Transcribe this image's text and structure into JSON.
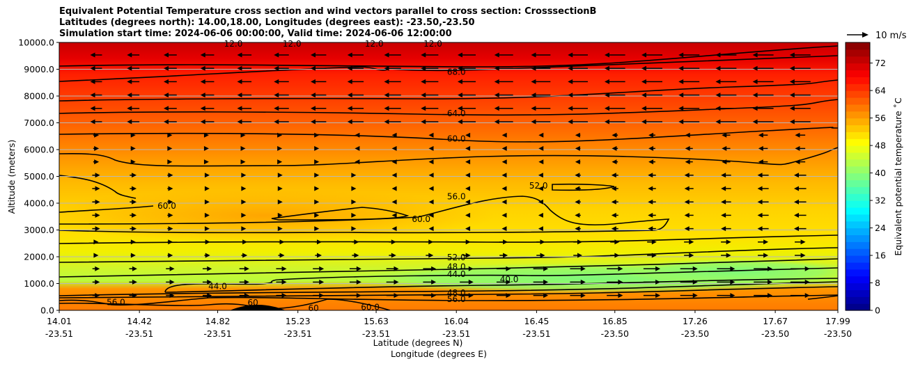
{
  "header": {
    "title_line1": "Equivalent Potential Temperature cross section and wind vectors parallel to cross section: CrosssectionB",
    "title_line2": "Latitudes (degrees north): 14.00,18.00, Longitudes (degrees east): -23.50,-23.50",
    "title_line3": "Simulation start time: 2024-06-06 00:00:00, Valid time: 2024-06-06 12:00:00"
  },
  "quiver_key": {
    "label": "10 m/s"
  },
  "chart_data": {
    "type": "heatmap",
    "subtype": "filled contour cross section with wind vectors",
    "ylabel": "Altitude (meters)",
    "xlabel_line1": "Latitude (degrees N)",
    "xlabel_line2": "Longitude (degrees E)",
    "ylim": [
      0,
      10000
    ],
    "yticks": [
      0,
      1000,
      2000,
      3000,
      4000,
      5000,
      6000,
      7000,
      8000,
      9000,
      10000
    ],
    "ytick_labels": [
      "0.0",
      "1000.0",
      "2000.0",
      "3000.0",
      "4000.0",
      "5000.0",
      "6000.0",
      "7000.0",
      "8000.0",
      "9000.0",
      "10000.0"
    ],
    "xlim": [
      14.01,
      17.99
    ],
    "xticks": [
      14.01,
      14.42,
      14.82,
      15.23,
      15.63,
      16.04,
      16.45,
      16.85,
      17.26,
      17.67,
      17.99
    ],
    "xtick_labels_lat": [
      "14.01",
      "14.42",
      "14.82",
      "15.23",
      "15.63",
      "16.04",
      "16.45",
      "16.85",
      "17.26",
      "17.67",
      "17.99"
    ],
    "xtick_labels_lon": [
      "-23.51",
      "-23.51",
      "-23.51",
      "-23.51",
      "-23.51",
      "-23.51",
      "-23.51",
      "-23.50",
      "-23.50",
      "-23.50",
      "-23.50"
    ],
    "colorbar": {
      "label": "Equivalent potential temperature $^\\circ$C",
      "label_display": "Equivalent potential temperature ˚C",
      "range": [
        0,
        78
      ],
      "ticks": [
        0,
        8,
        16,
        24,
        32,
        40,
        48,
        56,
        64,
        72
      ],
      "tick_labels": [
        "0",
        "8",
        "16",
        "24",
        "32",
        "40",
        "48",
        "56",
        "64",
        "72"
      ],
      "colormap": "jet"
    },
    "contour_labels": [
      {
        "text": "68.0",
        "lat": 16.04,
        "alt": 8900
      },
      {
        "text": "64.0",
        "lat": 16.04,
        "alt": 7350
      },
      {
        "text": "60.0",
        "lat": 16.04,
        "alt": 6400
      },
      {
        "text": "56.0",
        "lat": 16.04,
        "alt": 4250
      },
      {
        "text": "52.0",
        "lat": 16.04,
        "alt": 1980
      },
      {
        "text": "48.0",
        "lat": 16.04,
        "alt": 1620
      },
      {
        "text": "44.0",
        "lat": 16.04,
        "alt": 1350
      },
      {
        "text": "48.0",
        "lat": 16.04,
        "alt": 650
      },
      {
        "text": "56.0",
        "lat": 16.04,
        "alt": 420
      },
      {
        "text": "60.0",
        "lat": 14.56,
        "alt": 3900
      },
      {
        "text": "60.0",
        "lat": 15.86,
        "alt": 3400
      },
      {
        "text": "52.0",
        "lat": 16.46,
        "alt": 4650
      },
      {
        "text": "40.0",
        "lat": 16.31,
        "alt": 1150
      },
      {
        "text": "44.0",
        "lat": 14.82,
        "alt": 900
      },
      {
        "text": "56.0",
        "lat": 14.3,
        "alt": 300
      },
      {
        "text": "60",
        "lat": 15.0,
        "alt": 280
      },
      {
        "text": "60",
        "lat": 15.31,
        "alt": 80
      },
      {
        "text": "60.0",
        "lat": 15.6,
        "alt": 120
      },
      {
        "text": "12.0",
        "lat": 14.9,
        "alt": 9950
      },
      {
        "text": "12.0",
        "lat": 15.2,
        "alt": 9950
      },
      {
        "text": "12.0",
        "lat": 15.62,
        "alt": 9950
      },
      {
        "text": "12.0",
        "lat": 15.92,
        "alt": 9950
      }
    ]
  }
}
